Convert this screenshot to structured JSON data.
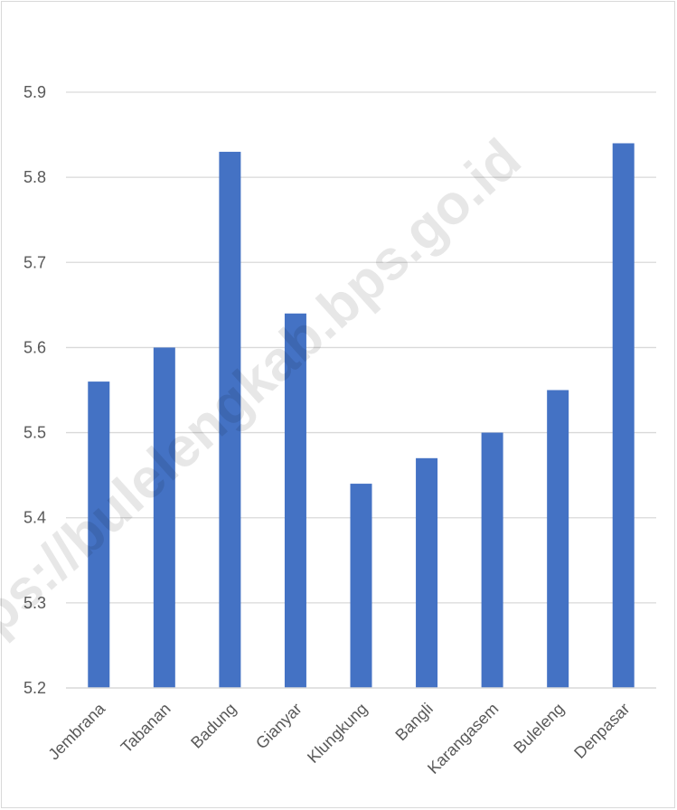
{
  "chart_data": {
    "type": "bar",
    "title": "",
    "xlabel": "",
    "ylabel": "",
    "categories": [
      "Jembrana",
      "Tabanan",
      "Badung",
      "Gianyar",
      "Klungkung",
      "Bangli",
      "Karangasem",
      "Buleleng",
      "Denpasar"
    ],
    "values": [
      5.56,
      5.6,
      5.83,
      5.64,
      5.44,
      5.47,
      5.5,
      5.55,
      5.84
    ],
    "ylim": [
      5.2,
      5.9
    ],
    "yticks": [
      "5.2",
      "5.3",
      "5.4",
      "5.5",
      "5.6",
      "5.7",
      "5.8",
      "5.9"
    ],
    "grid": true,
    "legend": "none",
    "bar_color": "#4472c4",
    "gridline_color": "#d9d9d9",
    "watermark": "https://bulelengkab.bps.go.id"
  }
}
